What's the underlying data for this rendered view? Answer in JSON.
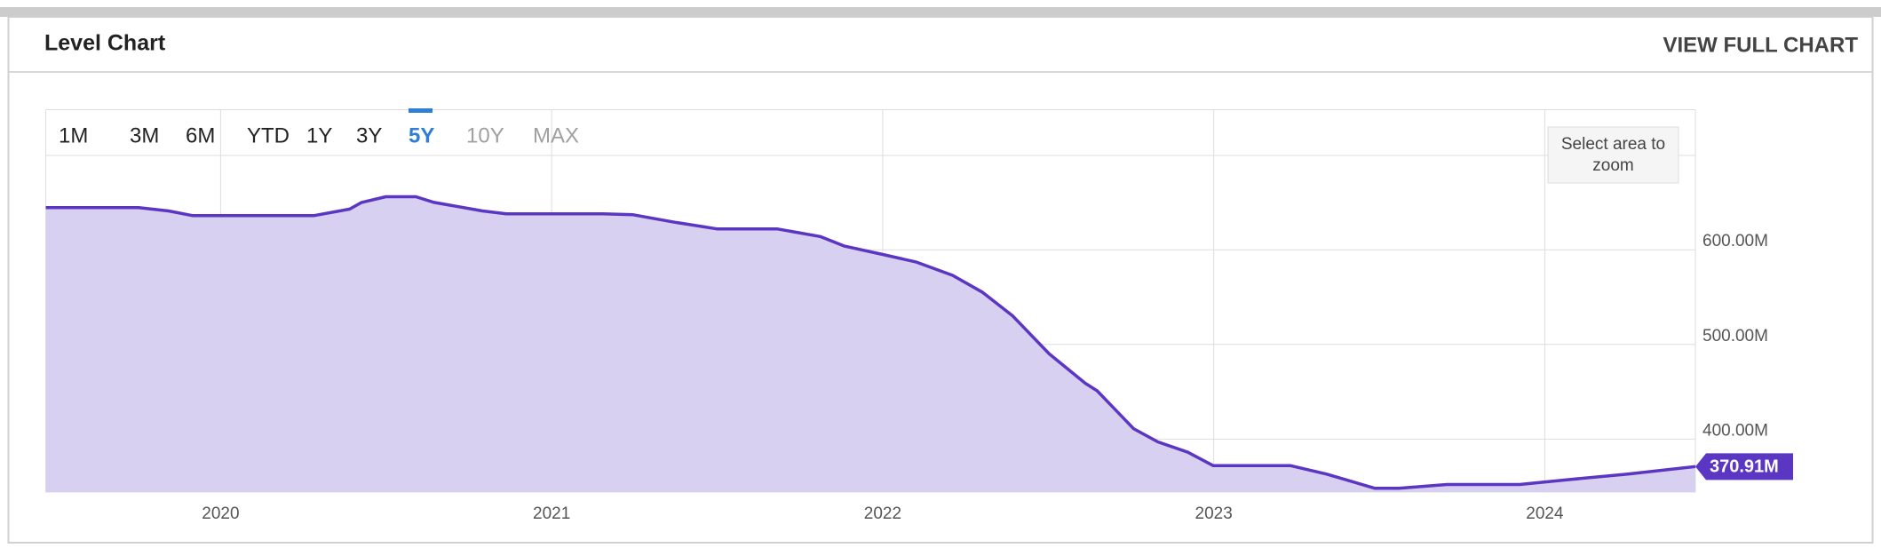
{
  "header": {
    "title": "Level Chart",
    "link": "VIEW FULL CHART"
  },
  "range_buttons": [
    "1M",
    "3M",
    "6M",
    "YTD",
    "1Y",
    "3Y",
    "5Y",
    "10Y",
    "MAX"
  ],
  "zoom_hint": "Select area to zoom",
  "chart_data": {
    "type": "area",
    "x": [
      2019.472,
      2019.752,
      2019.843,
      2019.916,
      2020.281,
      2020.39,
      2020.426,
      2020.499,
      2020.59,
      2020.645,
      2020.791,
      2020.863,
      2021.155,
      2021.246,
      2021.373,
      2021.501,
      2021.683,
      2021.811,
      2021.883,
      2022.0,
      2022.102,
      2022.211,
      2022.302,
      2022.393,
      2022.503,
      2022.612,
      2022.648,
      2022.703,
      2022.758,
      2022.831,
      2022.922,
      2022.998,
      2023.231,
      2023.341,
      2023.486,
      2023.559,
      2023.705,
      2023.924,
      2024.069,
      2024.251,
      2024.455
    ],
    "values": [
      644.6,
      644.6,
      641,
      636,
      636,
      643,
      650,
      656,
      656,
      650,
      641,
      638,
      638,
      637,
      629,
      622,
      622,
      614,
      604,
      595,
      587,
      573,
      555,
      530,
      490,
      459,
      451,
      431,
      411,
      397,
      386,
      372,
      372,
      363,
      348,
      348,
      352,
      352,
      357,
      363,
      370.91
    ],
    "line_color": "#5b36c2",
    "fill_color": "#d6cdef",
    "xlim": [
      2019.472,
      2024.455
    ],
    "xticks": [
      2020,
      2021,
      2022,
      2023,
      2024
    ],
    "ylim": [
      344,
      748
    ],
    "yticks": [
      {
        "value": 400,
        "label": "400.00M"
      },
      {
        "value": 500,
        "label": "500.00M"
      },
      {
        "value": 600,
        "label": "600.00M"
      }
    ],
    "grid": true,
    "last_label": {
      "value": 370.91,
      "label": "370.91M"
    }
  }
}
